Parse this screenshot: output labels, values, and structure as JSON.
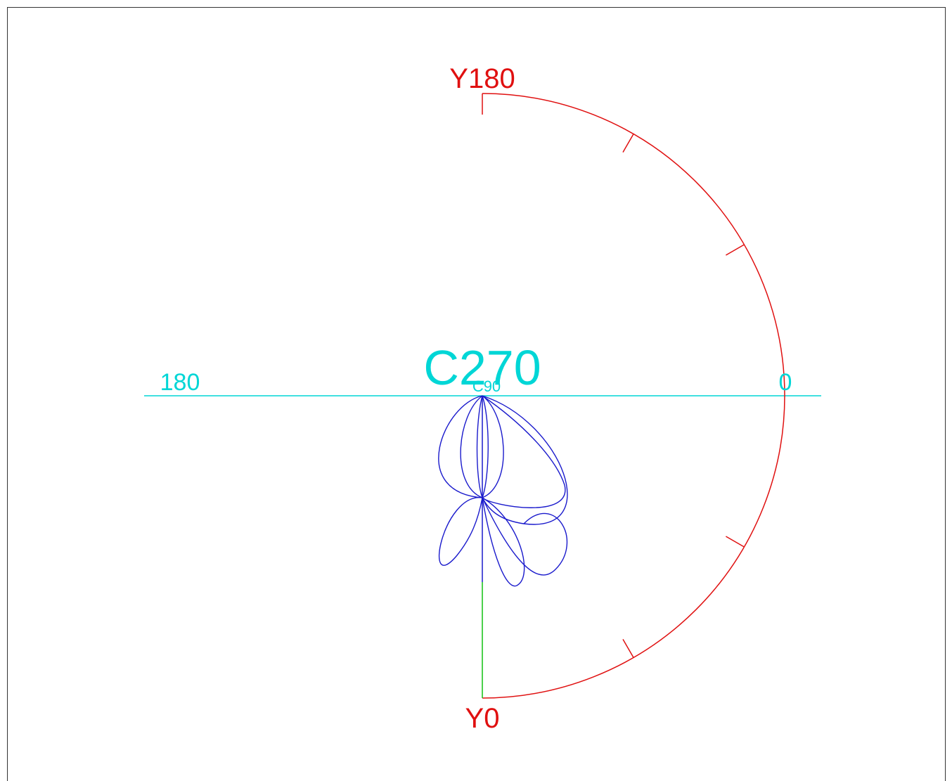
{
  "labels": {
    "y_top": "Y180",
    "y_bottom": "Y0",
    "c_left": "180",
    "c_right": "0",
    "c_center": "C270",
    "c_center_small": "C90"
  }
}
